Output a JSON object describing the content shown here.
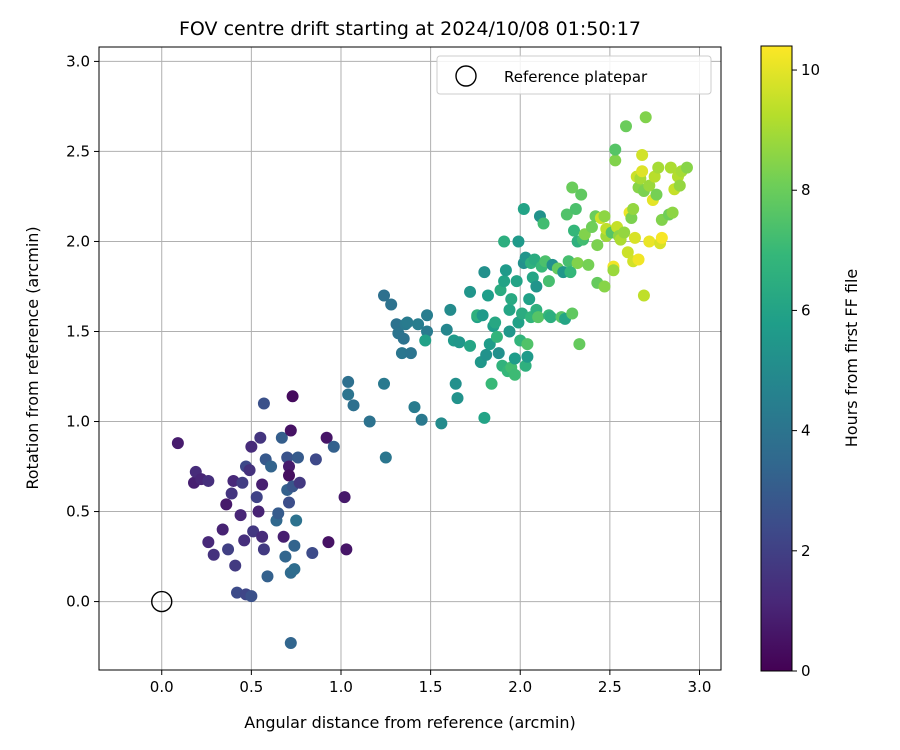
{
  "chart_data": {
    "type": "scatter",
    "title": "FOV centre drift starting at 2024/10/08 01:50:17",
    "xlabel": "Angular distance from reference (arcmin)",
    "ylabel": "Rotation from reference (arcmin)",
    "xlim": [
      -0.35,
      3.12
    ],
    "ylim": [
      -0.38,
      3.08
    ],
    "xticks": [
      "0.0",
      "0.5",
      "1.0",
      "1.5",
      "2.0",
      "2.5",
      "3.0"
    ],
    "xtick_values": [
      0,
      0.5,
      1.0,
      1.5,
      2.0,
      2.5,
      3.0
    ],
    "yticks": [
      "0.0",
      "0.5",
      "1.0",
      "1.5",
      "2.0",
      "2.5",
      "3.0"
    ],
    "ytick_values": [
      0,
      0.5,
      1.0,
      1.5,
      2.0,
      2.5,
      3.0
    ],
    "grid": true,
    "legend": {
      "position": "top-right",
      "entries": [
        {
          "label": "Reference platepar",
          "marker": "open-circle"
        }
      ]
    },
    "reference_point": {
      "x": 0.0,
      "y": 0.0
    },
    "colorbar": {
      "label": "Hours from first FF file",
      "colormap": "viridis",
      "range": [
        0,
        10.4
      ],
      "ticks": [
        "0",
        "2",
        "4",
        "6",
        "8",
        "10"
      ],
      "tick_values": [
        0,
        2,
        4,
        6,
        8,
        10
      ],
      "colors": [
        "#440154",
        "#482878",
        "#3e4989",
        "#31688e",
        "#26828e",
        "#1f9e89",
        "#35b779",
        "#6ece58",
        "#b5de2b",
        "#fde725"
      ]
    },
    "points": [
      [
        0.09,
        0.88,
        0.8
      ],
      [
        0.18,
        0.66,
        0.9
      ],
      [
        0.19,
        0.72,
        1.3
      ],
      [
        0.22,
        0.68,
        1.1
      ],
      [
        0.26,
        0.67,
        1.4
      ],
      [
        0.26,
        0.33,
        1.2
      ],
      [
        0.29,
        0.26,
        1.5
      ],
      [
        0.34,
        0.4,
        1.0
      ],
      [
        0.36,
        0.54,
        0.7
      ],
      [
        0.37,
        0.29,
        2.0
      ],
      [
        0.39,
        0.6,
        1.6
      ],
      [
        0.4,
        0.67,
        1.2
      ],
      [
        0.41,
        0.2,
        1.8
      ],
      [
        0.42,
        0.05,
        2.4
      ],
      [
        0.44,
        0.48,
        1.1
      ],
      [
        0.45,
        0.66,
        1.9
      ],
      [
        0.47,
        0.75,
        2.3
      ],
      [
        0.46,
        0.34,
        1.4
      ],
      [
        0.47,
        0.04,
        2.2
      ],
      [
        0.49,
        0.73,
        1.5
      ],
      [
        0.5,
        0.03,
        2.6
      ],
      [
        0.5,
        0.86,
        1.3
      ],
      [
        0.51,
        0.39,
        1.7
      ],
      [
        0.53,
        0.58,
        2.1
      ],
      [
        0.54,
        0.5,
        1.0
      ],
      [
        0.55,
        0.91,
        1.6
      ],
      [
        0.56,
        0.65,
        0.9
      ],
      [
        0.56,
        0.36,
        1.3
      ],
      [
        0.57,
        0.29,
        1.8
      ],
      [
        0.57,
        1.1,
        2.6
      ],
      [
        0.58,
        0.79,
        2.9
      ],
      [
        0.59,
        0.14,
        3.2
      ],
      [
        0.61,
        0.75,
        3.3
      ],
      [
        0.64,
        0.45,
        3.5
      ],
      [
        0.65,
        0.49,
        3.0
      ],
      [
        0.67,
        0.91,
        3.1
      ],
      [
        0.68,
        0.36,
        0.9
      ],
      [
        0.69,
        0.25,
        3.4
      ],
      [
        0.7,
        0.8,
        2.7
      ],
      [
        0.7,
        0.62,
        3.2
      ],
      [
        0.71,
        0.55,
        2.5
      ],
      [
        0.71,
        0.75,
        0.8
      ],
      [
        0.71,
        0.7,
        0.4
      ],
      [
        0.72,
        0.95,
        0.5
      ],
      [
        0.72,
        0.16,
        3.6
      ],
      [
        0.73,
        1.14,
        0.3
      ],
      [
        0.73,
        0.64,
        2.8
      ],
      [
        0.74,
        0.31,
        3.3
      ],
      [
        0.74,
        0.18,
        3.7
      ],
      [
        0.75,
        0.45,
        3.9
      ],
      [
        0.76,
        0.8,
        3.0
      ],
      [
        0.77,
        0.66,
        1.7
      ],
      [
        0.72,
        -0.23,
        3.4
      ],
      [
        0.84,
        0.27,
        2.4
      ],
      [
        0.86,
        0.79,
        2.3
      ],
      [
        0.93,
        0.33,
        0.5
      ],
      [
        0.92,
        0.91,
        0.6
      ],
      [
        0.96,
        0.86,
        3.2
      ],
      [
        1.02,
        0.58,
        0.7
      ],
      [
        1.03,
        0.29,
        0.6
      ],
      [
        1.04,
        1.22,
        3.8
      ],
      [
        1.04,
        1.15,
        4.0
      ],
      [
        1.07,
        1.09,
        3.8
      ],
      [
        1.16,
        1.0,
        3.9
      ],
      [
        1.24,
        1.21,
        4.2
      ],
      [
        1.24,
        1.7,
        3.8
      ],
      [
        1.25,
        0.8,
        4.1
      ],
      [
        1.28,
        1.65,
        3.9
      ],
      [
        1.31,
        1.54,
        3.9
      ],
      [
        1.32,
        1.49,
        4.0
      ],
      [
        1.34,
        1.38,
        4.1
      ],
      [
        1.35,
        1.46,
        3.9
      ],
      [
        1.36,
        1.54,
        4.2
      ],
      [
        1.37,
        1.55,
        4.3
      ],
      [
        1.39,
        1.38,
        4.0
      ],
      [
        1.41,
        1.08,
        4.3
      ],
      [
        1.43,
        1.54,
        4.4
      ],
      [
        1.45,
        1.01,
        4.2
      ],
      [
        1.48,
        1.59,
        4.4
      ],
      [
        1.48,
        1.5,
        4.3
      ],
      [
        1.47,
        1.45,
        5.9
      ],
      [
        1.56,
        0.99,
        5.0
      ],
      [
        1.59,
        1.51,
        4.8
      ],
      [
        1.61,
        1.62,
        5.0
      ],
      [
        1.63,
        1.45,
        5.6
      ],
      [
        1.64,
        1.21,
        5.2
      ],
      [
        1.65,
        1.13,
        5.3
      ],
      [
        1.66,
        1.44,
        5.5
      ],
      [
        1.72,
        1.42,
        6.1
      ],
      [
        1.72,
        1.72,
        5.4
      ],
      [
        1.76,
        1.58,
        5.9
      ],
      [
        1.76,
        1.59,
        6.6
      ],
      [
        1.78,
        1.33,
        5.5
      ],
      [
        1.79,
        1.59,
        5.6
      ],
      [
        1.8,
        1.02,
        6.0
      ],
      [
        1.8,
        1.83,
        5.2
      ],
      [
        1.81,
        1.37,
        5.3
      ],
      [
        1.82,
        1.7,
        5.8
      ],
      [
        1.83,
        1.43,
        5.7
      ],
      [
        1.84,
        1.21,
        7.0
      ],
      [
        1.85,
        1.53,
        5.8
      ],
      [
        1.86,
        1.55,
        6.2
      ],
      [
        1.87,
        1.47,
        6.8
      ],
      [
        1.88,
        1.38,
        5.2
      ],
      [
        1.89,
        1.73,
        6.4
      ],
      [
        1.9,
        1.31,
        6.7
      ],
      [
        1.91,
        1.78,
        6.0
      ],
      [
        1.91,
        2.0,
        6.5
      ],
      [
        1.92,
        1.84,
        5.6
      ],
      [
        1.93,
        1.28,
        6.9
      ],
      [
        1.94,
        1.5,
        5.5
      ],
      [
        1.94,
        1.62,
        6.1
      ],
      [
        1.95,
        1.68,
        6.3
      ],
      [
        1.95,
        1.3,
        7.2
      ],
      [
        1.97,
        1.26,
        7.1
      ],
      [
        1.97,
        1.35,
        5.7
      ],
      [
        1.98,
        1.78,
        6.0
      ],
      [
        1.99,
        1.55,
        5.9
      ],
      [
        1.99,
        2.0,
        5.6
      ],
      [
        2.0,
        1.45,
        6.8
      ],
      [
        2.01,
        1.6,
        6.4
      ],
      [
        2.02,
        1.88,
        5.2
      ],
      [
        2.02,
        2.18,
        6.0
      ],
      [
        2.03,
        1.91,
        5.4
      ],
      [
        2.03,
        1.31,
        6.6
      ],
      [
        2.04,
        1.36,
        5.6
      ],
      [
        2.04,
        1.43,
        7.5
      ],
      [
        2.05,
        1.68,
        5.9
      ],
      [
        2.06,
        1.58,
        6.8
      ],
      [
        2.06,
        1.88,
        6.6
      ],
      [
        2.07,
        1.8,
        6.1
      ],
      [
        2.08,
        1.9,
        6.4
      ],
      [
        2.09,
        1.75,
        5.4
      ],
      [
        2.09,
        1.62,
        6.6
      ],
      [
        2.1,
        1.58,
        7.6
      ],
      [
        2.11,
        2.14,
        5.3
      ],
      [
        2.12,
        1.86,
        7.0
      ],
      [
        2.13,
        2.1,
        7.2
      ],
      [
        2.14,
        1.89,
        7.4
      ],
      [
        2.16,
        1.59,
        6.9
      ],
      [
        2.16,
        1.78,
        7.3
      ],
      [
        2.17,
        1.58,
        6.5
      ],
      [
        2.18,
        1.87,
        5.2
      ],
      [
        2.21,
        1.85,
        7.9
      ],
      [
        2.23,
        1.58,
        7.6
      ],
      [
        2.24,
        1.83,
        5.5
      ],
      [
        2.25,
        1.57,
        6.1
      ],
      [
        2.26,
        2.15,
        7.5
      ],
      [
        2.27,
        1.89,
        7.3
      ],
      [
        2.28,
        1.83,
        6.9
      ],
      [
        2.29,
        2.3,
        8.0
      ],
      [
        2.29,
        1.6,
        7.8
      ],
      [
        2.3,
        2.06,
        6.9
      ],
      [
        2.31,
        2.18,
        7.4
      ],
      [
        2.32,
        1.88,
        8.4
      ],
      [
        2.32,
        2.0,
        6.6
      ],
      [
        2.33,
        1.43,
        7.9
      ],
      [
        2.34,
        2.26,
        7.8
      ],
      [
        2.35,
        2.01,
        7.2
      ],
      [
        2.36,
        2.04,
        8.4
      ],
      [
        2.38,
        1.87,
        8.2
      ],
      [
        2.4,
        2.08,
        8.1
      ],
      [
        2.42,
        2.14,
        8.0
      ],
      [
        2.43,
        1.98,
        8.3
      ],
      [
        2.43,
        1.77,
        7.9
      ],
      [
        2.45,
        2.13,
        9.6
      ],
      [
        2.47,
        2.14,
        8.6
      ],
      [
        2.47,
        1.75,
        8.5
      ],
      [
        2.48,
        2.03,
        8.9
      ],
      [
        2.48,
        2.07,
        9.4
      ],
      [
        2.51,
        2.05,
        7.6
      ],
      [
        2.52,
        1.86,
        10.2
      ],
      [
        2.52,
        1.84,
        8.8
      ],
      [
        2.53,
        2.45,
        8.4
      ],
      [
        2.53,
        2.51,
        7.6
      ],
      [
        2.54,
        2.08,
        9.5
      ],
      [
        2.55,
        2.03,
        8.6
      ],
      [
        2.56,
        2.01,
        9.1
      ],
      [
        2.58,
        2.05,
        8.7
      ],
      [
        2.59,
        2.64,
        8.0
      ],
      [
        2.6,
        1.94,
        9.6
      ],
      [
        2.61,
        2.16,
        10.1
      ],
      [
        2.62,
        2.13,
        8.3
      ],
      [
        2.63,
        1.89,
        9.7
      ],
      [
        2.63,
        2.18,
        8.7
      ],
      [
        2.64,
        2.02,
        9.8
      ],
      [
        2.65,
        2.36,
        9.6
      ],
      [
        2.66,
        2.3,
        8.5
      ],
      [
        2.66,
        1.9,
        10.2
      ],
      [
        2.67,
        2.35,
        9.0
      ],
      [
        2.68,
        2.39,
        9.9
      ],
      [
        2.68,
        2.48,
        9.7
      ],
      [
        2.69,
        2.28,
        8.3
      ],
      [
        2.69,
        1.7,
        9.4
      ],
      [
        2.7,
        2.69,
        8.4
      ],
      [
        2.72,
        2.31,
        8.8
      ],
      [
        2.72,
        2.0,
        10.1
      ],
      [
        2.74,
        2.23,
        10.0
      ],
      [
        2.75,
        2.36,
        9.3
      ],
      [
        2.76,
        2.26,
        8.2
      ],
      [
        2.77,
        2.41,
        9.0
      ],
      [
        2.78,
        1.99,
        9.8
      ],
      [
        2.79,
        2.02,
        10.3
      ],
      [
        2.79,
        2.12,
        8.4
      ],
      [
        2.83,
        2.15,
        8.1
      ],
      [
        2.84,
        2.41,
        9.1
      ],
      [
        2.85,
        2.16,
        8.6
      ],
      [
        2.86,
        2.29,
        9.5
      ],
      [
        2.88,
        2.36,
        9.2
      ],
      [
        2.89,
        2.31,
        8.7
      ],
      [
        2.9,
        2.39,
        9.0
      ],
      [
        2.93,
        2.41,
        8.5
      ]
    ]
  }
}
